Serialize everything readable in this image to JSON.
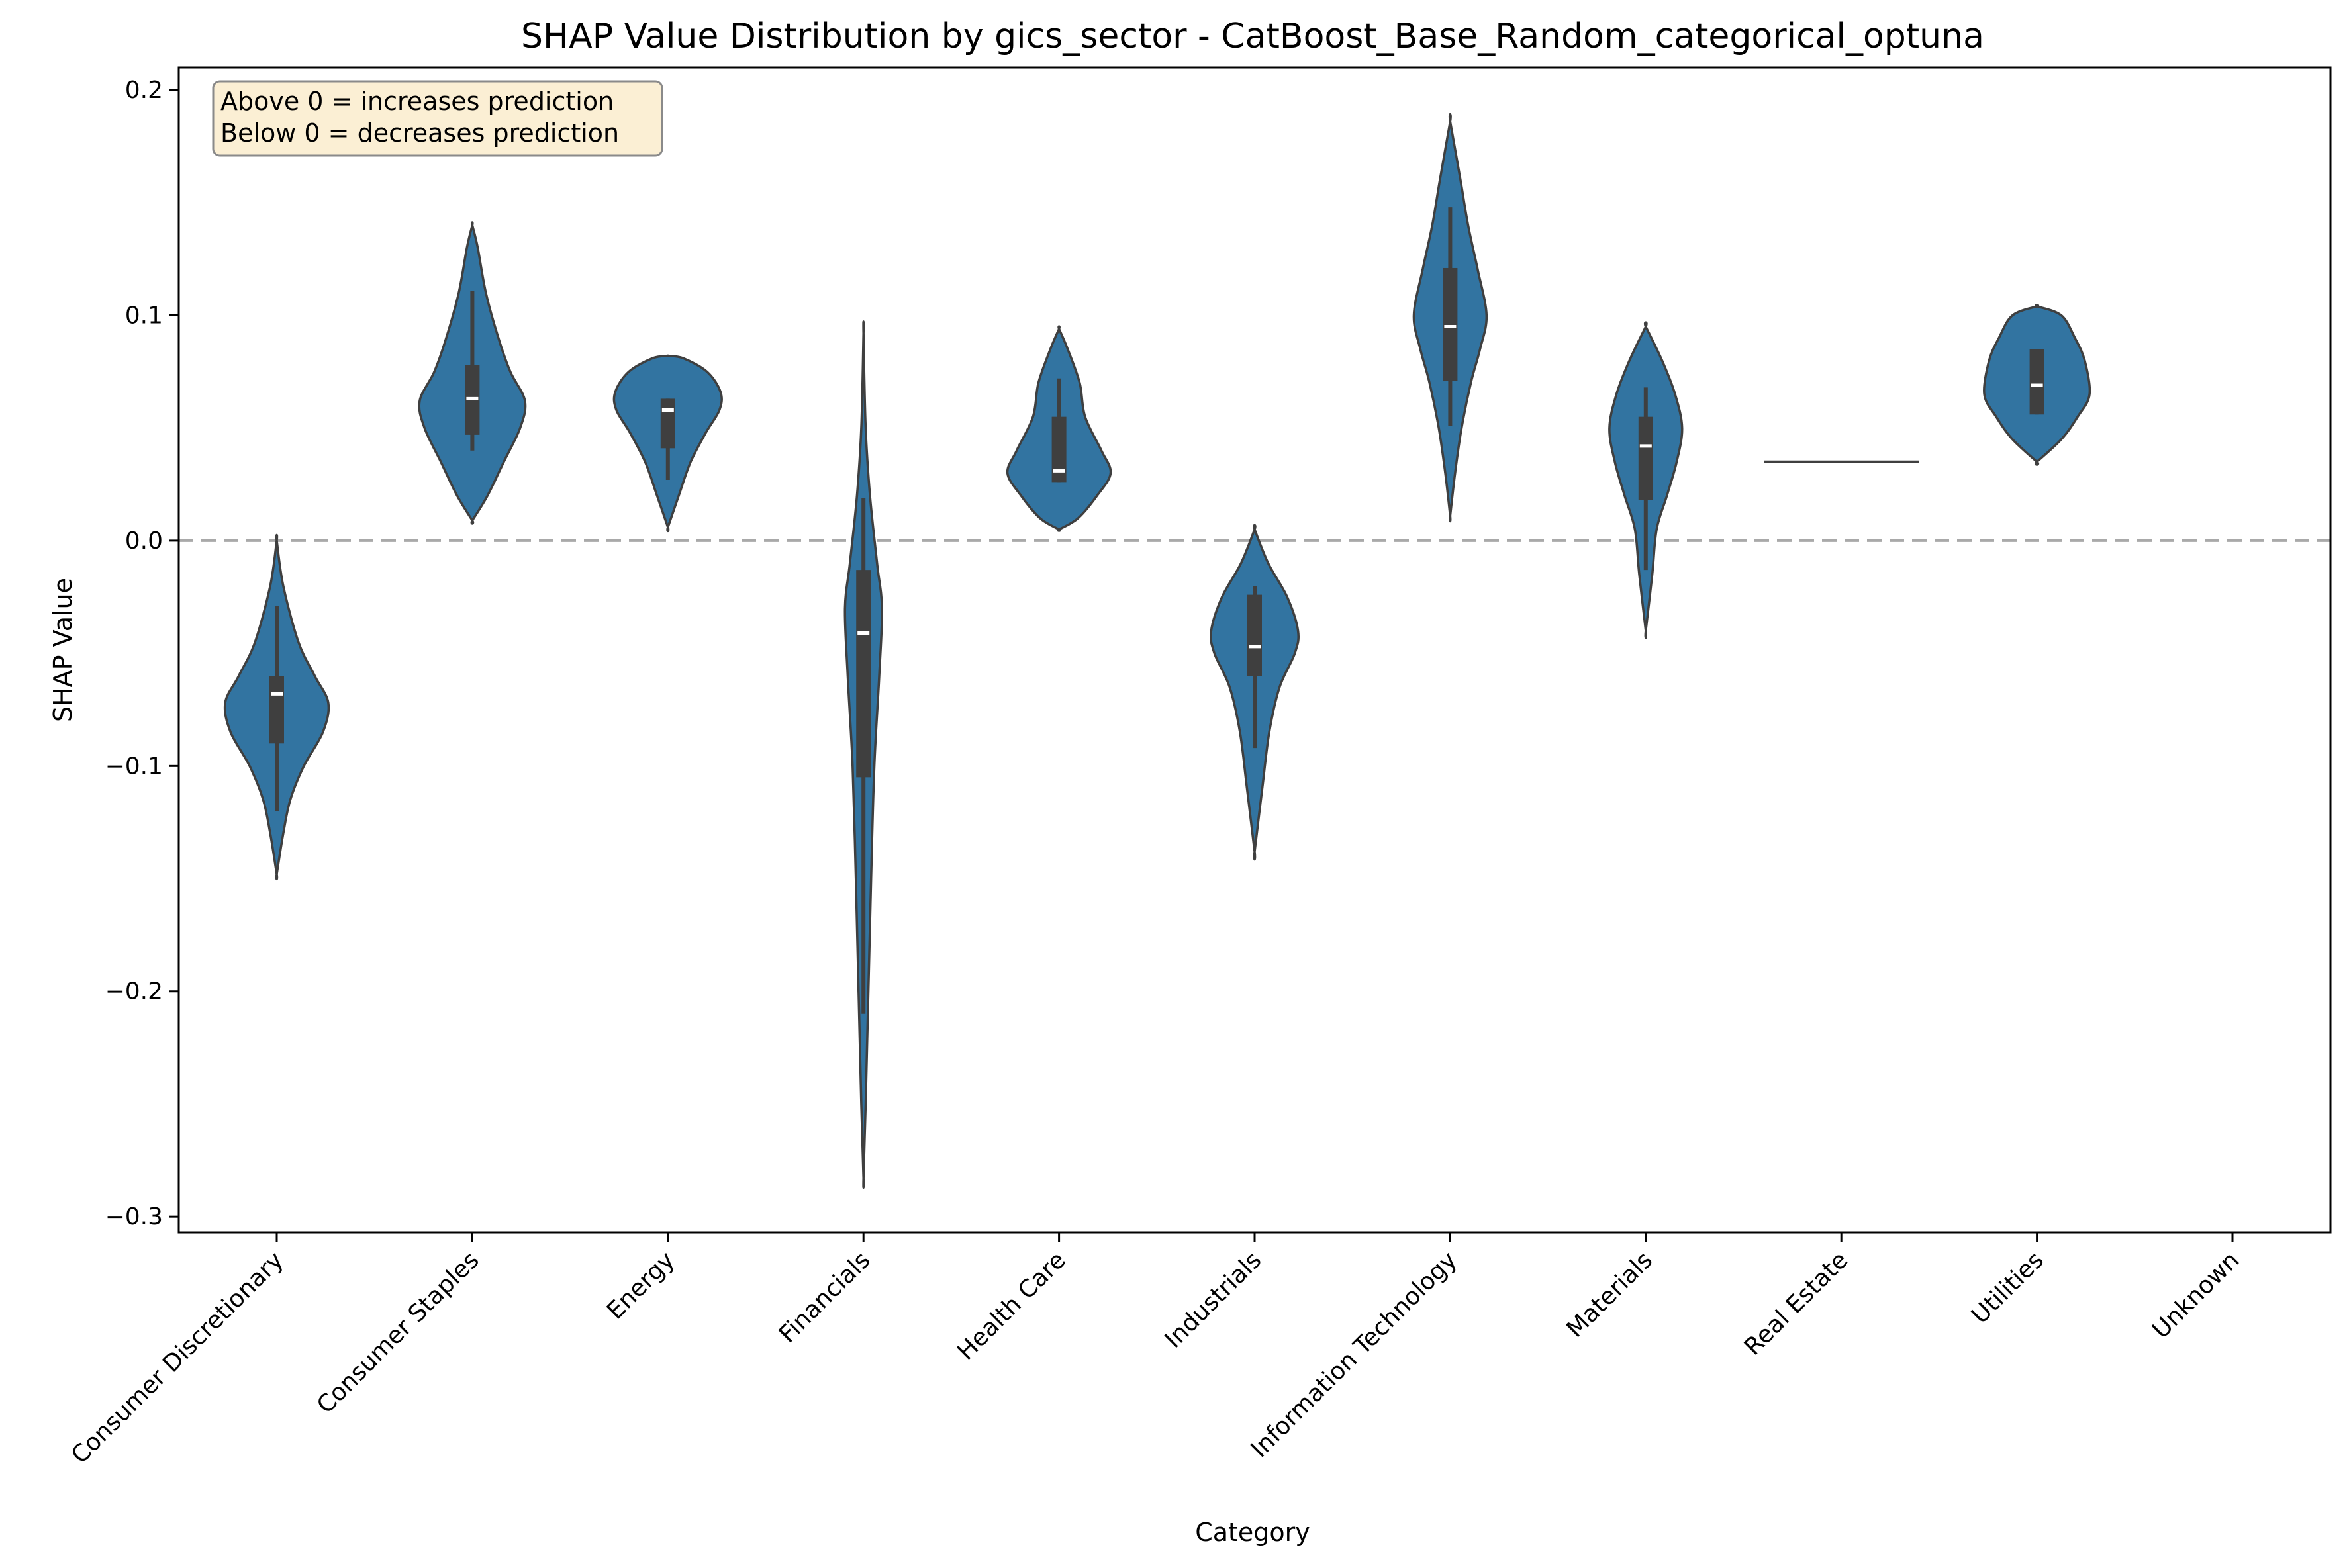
{
  "chart_data": {
    "type": "violin",
    "title": "SHAP Value Distribution by gics_sector - CatBoost_Base_Random_categorical_optuna",
    "xlabel": "Category",
    "ylabel": "SHAP Value",
    "ylim": [
      -0.307,
      0.21
    ],
    "y_ticks": [
      "0.2",
      "0.1",
      "0.0",
      "−0.1",
      "−0.2",
      "−0.3"
    ],
    "y_tick_values": [
      0.2,
      0.1,
      0.0,
      -0.1,
      -0.2,
      -0.3
    ],
    "reference_line": 0.0,
    "annotation": [
      "Above 0 = increases prediction",
      "Below 0 = decreases prediction"
    ],
    "violin_color": "#3274a1",
    "categories": [
      "Consumer Discretionary",
      "Consumer Staples",
      "Energy",
      "Financials",
      "Health Care",
      "Industrials",
      "Information Technology",
      "Materials",
      "Real Estate",
      "Utilities",
      "Unknown"
    ],
    "violins": [
      {
        "category": "Consumer Discretionary",
        "min": -0.12,
        "q1": -0.09,
        "median": -0.068,
        "q3": -0.06,
        "max": -0.029,
        "profile": [
          [
            0.0,
            0
          ],
          [
            -0.02,
            0.12
          ],
          [
            -0.045,
            0.4
          ],
          [
            -0.06,
            0.7
          ],
          [
            -0.072,
            0.95
          ],
          [
            -0.085,
            0.85
          ],
          [
            -0.1,
            0.5
          ],
          [
            -0.115,
            0.25
          ],
          [
            -0.13,
            0.12
          ],
          [
            -0.148,
            0
          ]
        ]
      },
      {
        "category": "Consumer Staples",
        "min": 0.04,
        "q1": 0.047,
        "median": 0.063,
        "q3": 0.078,
        "max": 0.111,
        "profile": [
          [
            0.14,
            0
          ],
          [
            0.13,
            0.1
          ],
          [
            0.11,
            0.25
          ],
          [
            0.09,
            0.48
          ],
          [
            0.075,
            0.7
          ],
          [
            0.062,
            0.97
          ],
          [
            0.05,
            0.88
          ],
          [
            0.035,
            0.58
          ],
          [
            0.02,
            0.28
          ],
          [
            0.009,
            0
          ]
        ]
      },
      {
        "category": "Energy",
        "min": 0.027,
        "q1": 0.041,
        "median": 0.058,
        "q3": 0.063,
        "max": 0.063,
        "profile": [
          [
            0.082,
            0
          ],
          [
            0.081,
            0.28
          ],
          [
            0.075,
            0.72
          ],
          [
            0.066,
            0.97
          ],
          [
            0.058,
            0.95
          ],
          [
            0.048,
            0.7
          ],
          [
            0.035,
            0.42
          ],
          [
            0.02,
            0.2
          ],
          [
            0.006,
            0
          ]
        ]
      },
      {
        "category": "Financials",
        "min": -0.21,
        "q1": -0.105,
        "median": -0.041,
        "q3": -0.013,
        "max": 0.019,
        "profile": [
          [
            0.092,
            0
          ],
          [
            0.05,
            0.04
          ],
          [
            0.02,
            0.12
          ],
          [
            -0.01,
            0.25
          ],
          [
            -0.03,
            0.34
          ],
          [
            -0.06,
            0.29
          ],
          [
            -0.1,
            0.2
          ],
          [
            -0.15,
            0.14
          ],
          [
            -0.2,
            0.09
          ],
          [
            -0.25,
            0.04
          ],
          [
            -0.283,
            0
          ]
        ]
      },
      {
        "category": "Health Care",
        "min": 0.026,
        "q1": 0.026,
        "median": 0.031,
        "q3": 0.055,
        "max": 0.072,
        "profile": [
          [
            0.094,
            0
          ],
          [
            0.085,
            0.16
          ],
          [
            0.07,
            0.38
          ],
          [
            0.055,
            0.48
          ],
          [
            0.04,
            0.78
          ],
          [
            0.03,
            0.95
          ],
          [
            0.02,
            0.7
          ],
          [
            0.01,
            0.35
          ],
          [
            0.005,
            0
          ]
        ]
      },
      {
        "category": "Industrials",
        "min": -0.092,
        "q1": -0.06,
        "median": -0.047,
        "q3": -0.024,
        "max": -0.02,
        "profile": [
          [
            0.005,
            0
          ],
          [
            -0.01,
            0.25
          ],
          [
            -0.025,
            0.6
          ],
          [
            -0.04,
            0.8
          ],
          [
            -0.05,
            0.74
          ],
          [
            -0.065,
            0.46
          ],
          [
            -0.085,
            0.27
          ],
          [
            -0.11,
            0.14
          ],
          [
            -0.138,
            0
          ]
        ]
      },
      {
        "category": "Information Technology",
        "min": 0.051,
        "q1": 0.071,
        "median": 0.095,
        "q3": 0.121,
        "max": 0.148,
        "profile": [
          [
            0.186,
            0
          ],
          [
            0.16,
            0.19
          ],
          [
            0.14,
            0.33
          ],
          [
            0.12,
            0.51
          ],
          [
            0.1,
            0.67
          ],
          [
            0.085,
            0.55
          ],
          [
            0.07,
            0.38
          ],
          [
            0.05,
            0.21
          ],
          [
            0.03,
            0.09
          ],
          [
            0.011,
            0
          ]
        ]
      },
      {
        "category": "Materials",
        "min": -0.013,
        "q1": 0.018,
        "median": 0.042,
        "q3": 0.055,
        "max": 0.068,
        "profile": [
          [
            0.095,
            0
          ],
          [
            0.08,
            0.3
          ],
          [
            0.065,
            0.54
          ],
          [
            0.05,
            0.67
          ],
          [
            0.035,
            0.57
          ],
          [
            0.02,
            0.39
          ],
          [
            0.005,
            0.2
          ],
          [
            -0.015,
            0.12
          ],
          [
            -0.04,
            0
          ]
        ]
      },
      {
        "category": "Real Estate",
        "flat_value": 0.035,
        "min": 0.035,
        "q1": 0.035,
        "median": 0.035,
        "q3": 0.035,
        "max": 0.035,
        "profile": []
      },
      {
        "category": "Utilities",
        "min": 0.056,
        "q1": 0.056,
        "median": 0.069,
        "q3": 0.085,
        "max": 0.085,
        "profile": [
          [
            0.104,
            0
          ],
          [
            0.1,
            0.45
          ],
          [
            0.09,
            0.7
          ],
          [
            0.08,
            0.88
          ],
          [
            0.065,
            0.97
          ],
          [
            0.055,
            0.75
          ],
          [
            0.045,
            0.45
          ],
          [
            0.035,
            0
          ]
        ]
      },
      {
        "category": "Unknown",
        "min": null,
        "q1": null,
        "median": null,
        "q3": null,
        "max": null,
        "profile": []
      }
    ]
  }
}
